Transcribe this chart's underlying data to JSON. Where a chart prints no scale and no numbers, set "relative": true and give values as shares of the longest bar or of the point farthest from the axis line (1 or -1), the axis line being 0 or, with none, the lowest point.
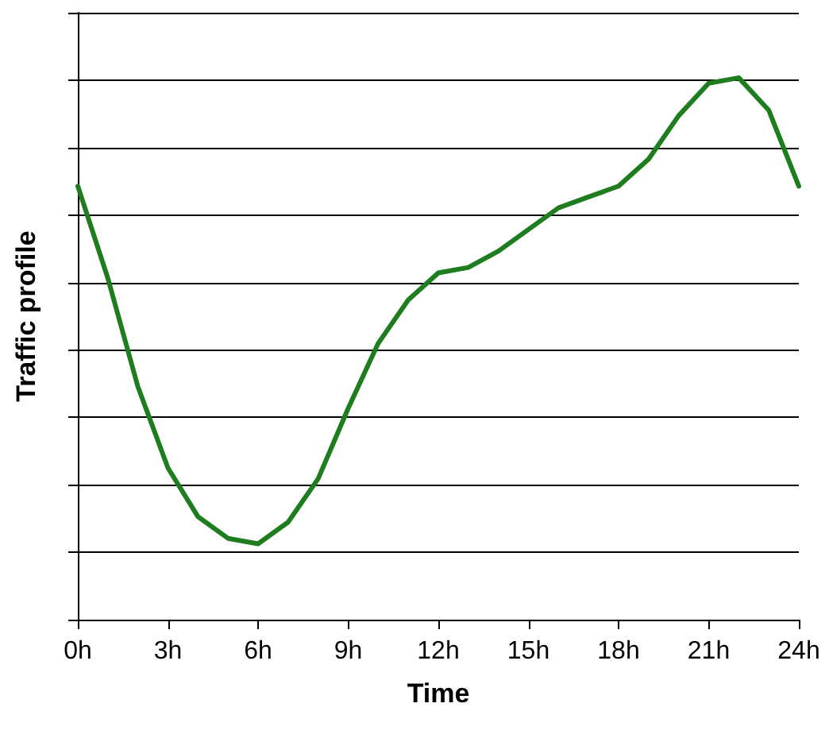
{
  "chart_data": {
    "type": "line",
    "xlabel": "Time",
    "ylabel": "Traffic profile",
    "relative": true,
    "grid": "y",
    "marker": "none",
    "line_style": "solid",
    "xlim": [
      0,
      24
    ],
    "xticks": [
      {
        "value": 0,
        "label": "0h"
      },
      {
        "value": 3,
        "label": "3h"
      },
      {
        "value": 6,
        "label": "6h"
      },
      {
        "value": 9,
        "label": "9h"
      },
      {
        "value": 12,
        "label": "12h"
      },
      {
        "value": 15,
        "label": "15h"
      },
      {
        "value": 18,
        "label": "18h"
      },
      {
        "value": 21,
        "label": "21h"
      },
      {
        "value": 24,
        "label": "24h"
      }
    ],
    "x": [
      0,
      1,
      2,
      3,
      4,
      5,
      6,
      7,
      8,
      9,
      10,
      11,
      12,
      13,
      14,
      15,
      16,
      17,
      18,
      19,
      20,
      21,
      22,
      23,
      24
    ],
    "series": [
      {
        "color": "#1e7d1e",
        "values": [
          0.8,
          0.63,
          0.43,
          0.28,
          0.19,
          0.15,
          0.14,
          0.18,
          0.26,
          0.39,
          0.51,
          0.59,
          0.64,
          0.65,
          0.68,
          0.72,
          0.76,
          0.78,
          0.8,
          0.85,
          0.93,
          0.99,
          1,
          0.94,
          0.8
        ]
      }
    ]
  }
}
